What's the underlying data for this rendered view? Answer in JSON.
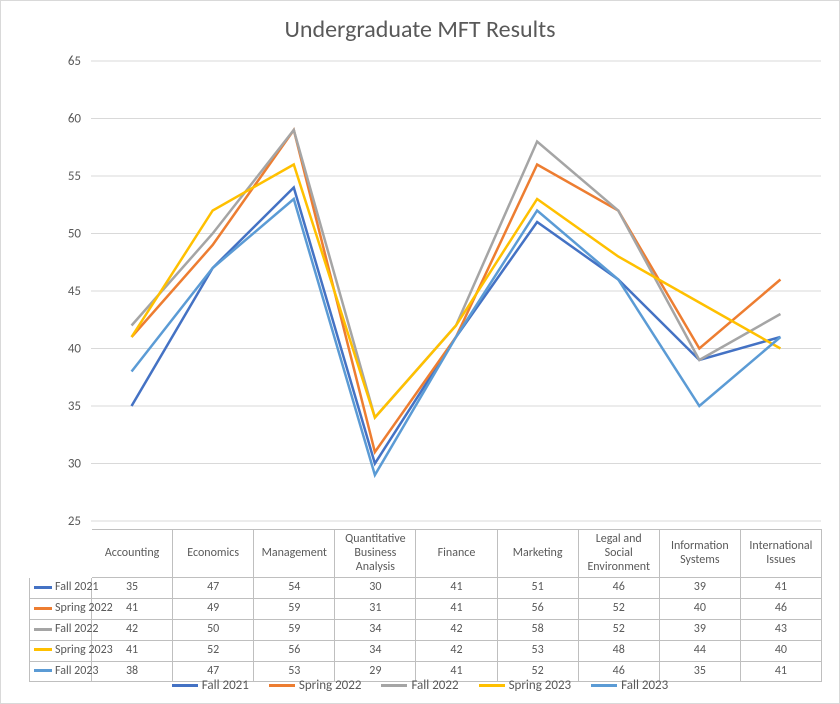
{
  "chart": {
    "type": "line",
    "title": "Undergraduate MFT Results",
    "title_fontsize": 24,
    "title_color": "#595959",
    "background_color": "#ffffff",
    "border_color": "#d9d9d9",
    "grid_color": "#d9d9d9",
    "text_color": "#595959",
    "label_fontsize": 13,
    "table_fontsize": 12,
    "line_width": 2.5,
    "ylim": [
      25,
      65
    ],
    "ytick_step": 5,
    "categories": [
      "Accounting",
      "Economics",
      "Management",
      "Quantitative Business Analysis",
      "Finance",
      "Marketing",
      "Legal and Social Environment",
      "Information Systems",
      "International Issues"
    ],
    "series": [
      {
        "name": "Fall 2021",
        "color": "#4472c4",
        "values": [
          35,
          47,
          54,
          30,
          41,
          51,
          46,
          39,
          41
        ]
      },
      {
        "name": "Spring 2022",
        "color": "#ed7d31",
        "values": [
          41,
          49,
          59,
          31,
          41,
          56,
          52,
          40,
          46
        ]
      },
      {
        "name": "Fall 2022",
        "color": "#a5a5a5",
        "values": [
          42,
          50,
          59,
          34,
          42,
          58,
          52,
          39,
          43
        ]
      },
      {
        "name": "Spring 2023",
        "color": "#ffc000",
        "values": [
          41,
          52,
          56,
          34,
          42,
          53,
          48,
          44,
          40
        ]
      },
      {
        "name": "Fall 2023",
        "color": "#5b9bd5",
        "values": [
          38,
          47,
          53,
          29,
          41,
          52,
          46,
          35,
          41
        ]
      }
    ]
  }
}
